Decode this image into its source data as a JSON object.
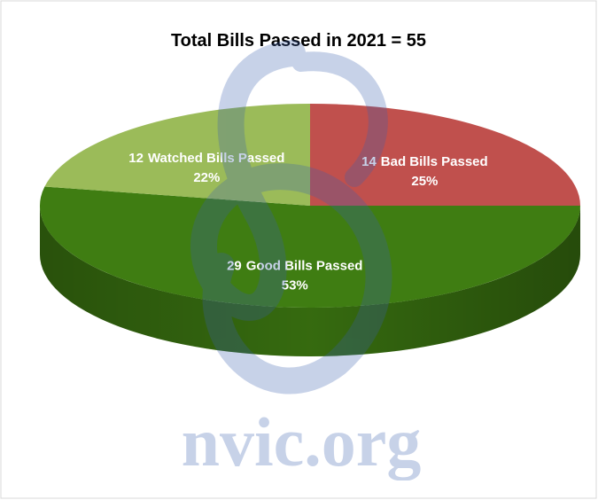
{
  "chart_data": {
    "type": "pie",
    "title": "Total Bills Passed in 2021 = 55",
    "categories": [
      "Bad Bills Passed",
      "Good Bills Passed",
      "Watched Bills Passed"
    ],
    "counts": [
      14,
      29,
      12
    ],
    "values": [
      25,
      53,
      22
    ],
    "value_labels": [
      "25%",
      "53%",
      "22%"
    ],
    "colors": [
      "#c0504d",
      "#3f7d12",
      "#9bbb59"
    ],
    "watermark": "nvic.org"
  }
}
